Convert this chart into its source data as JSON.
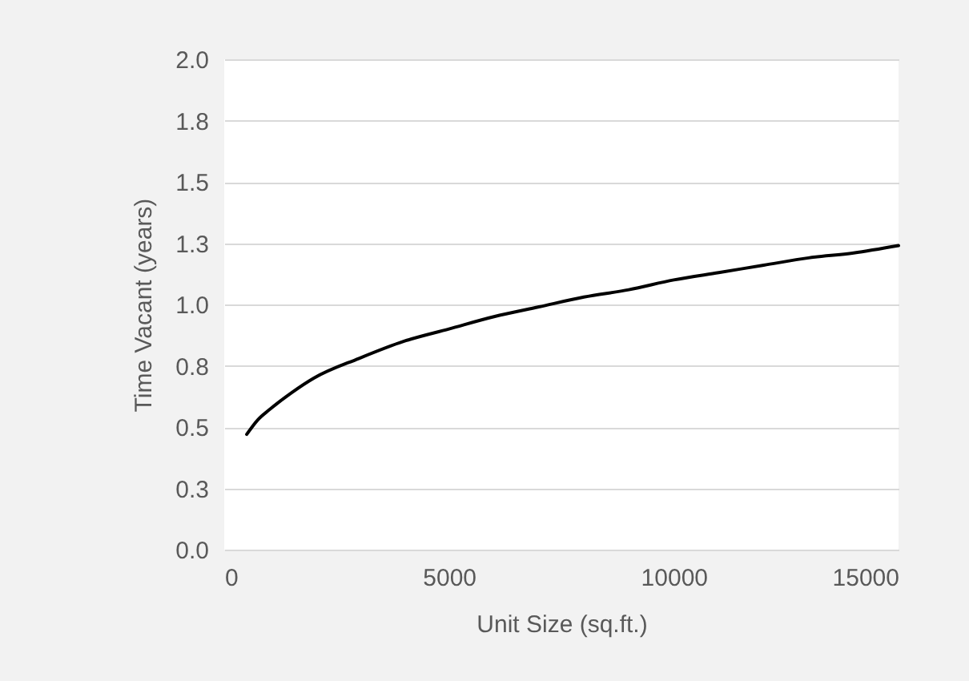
{
  "chart_data": {
    "type": "line",
    "xlabel": "Unit Size (sq.ft.)",
    "ylabel": "Time Vacant (years)",
    "x": [
      500,
      750,
      1000,
      1500,
      2000,
      3000,
      4000,
      5000,
      6000,
      7000,
      8000,
      9000,
      10000,
      11000,
      12000,
      13000,
      14000,
      15000
    ],
    "series": [
      {
        "color": "#000000",
        "values": [
          0.47,
          0.53,
          0.57,
          0.64,
          0.7,
          0.78,
          0.85,
          0.9,
          0.95,
          0.99,
          1.03,
          1.06,
          1.1,
          1.13,
          1.16,
          1.19,
          1.21,
          1.24
        ]
      }
    ],
    "xlim": [
      0,
      15000
    ],
    "xticks": [
      0,
      5000,
      10000,
      15000
    ],
    "ylim": [
      0,
      2
    ],
    "yticks": [
      {
        "value": 0,
        "label": "0.0"
      },
      {
        "value": 0.25,
        "label": "0.3"
      },
      {
        "value": 0.5,
        "label": "0.5"
      },
      {
        "value": 0.75,
        "label": "0.8"
      },
      {
        "value": 1,
        "label": "1.0"
      },
      {
        "value": 1.25,
        "label": "1.3"
      },
      {
        "value": 1.5,
        "label": "1.5"
      },
      {
        "value": 1.75,
        "label": "1.8"
      },
      {
        "value": 2,
        "label": "2.0"
      }
    ],
    "grid": "y",
    "marker": "none",
    "line_style": "solid"
  }
}
